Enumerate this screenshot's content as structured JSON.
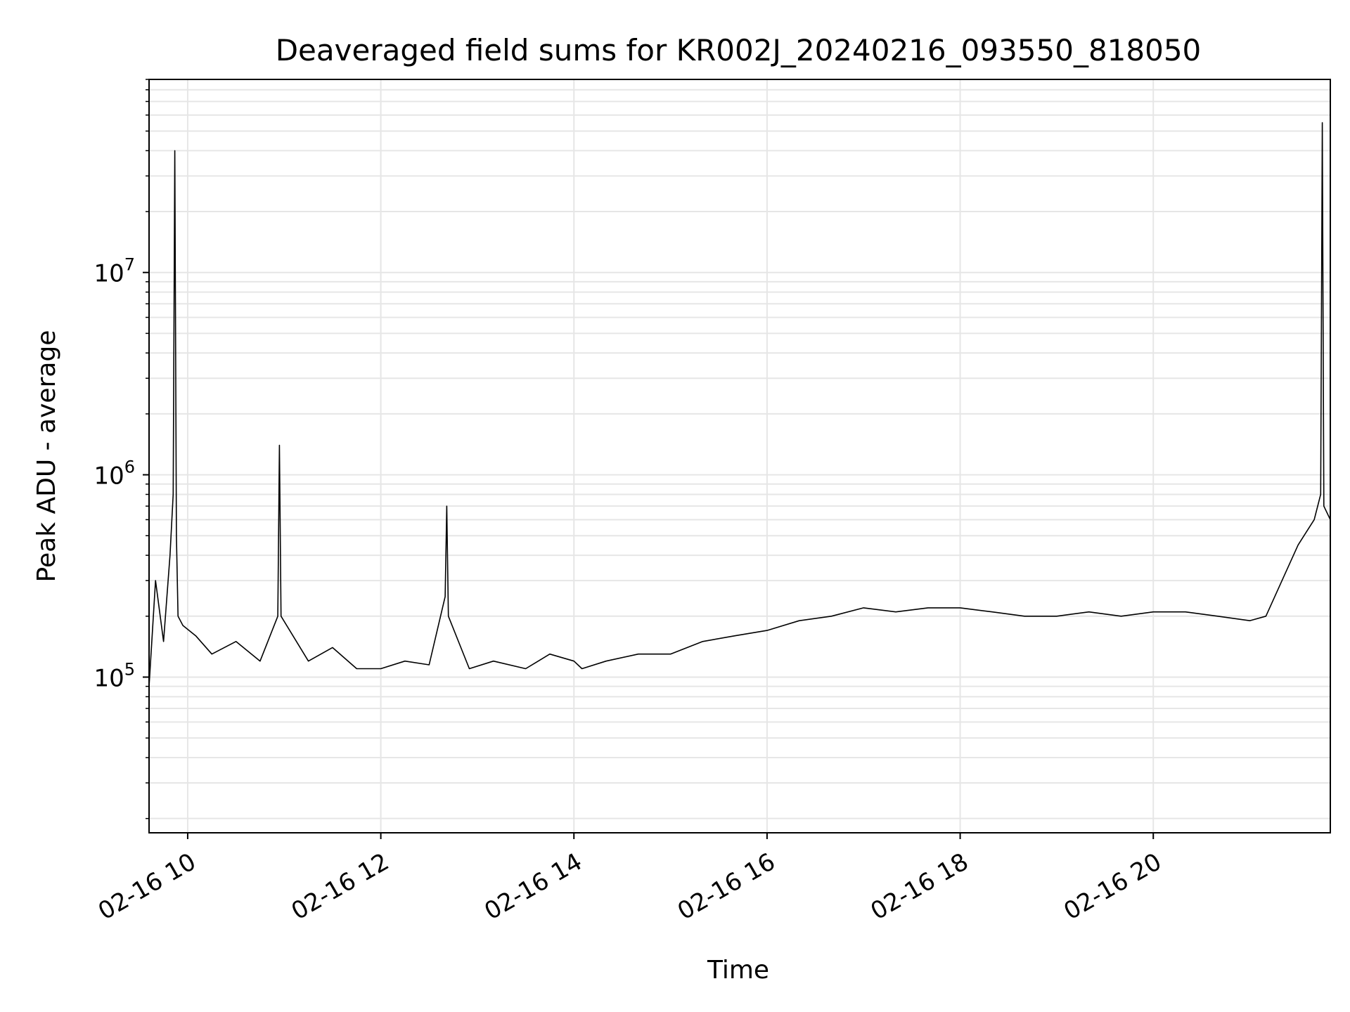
{
  "chart_data": {
    "type": "line",
    "title": "Deaveraged field sums for KR002J_20240216_093550_818050",
    "xlabel": "Time",
    "ylabel": "Peak ADU - average",
    "x_range": [
      "2024-02-16T09:36",
      "2024-02-16T21:50"
    ],
    "y_scale": "log",
    "ylim": [
      17000,
      90000000
    ],
    "grid": "on",
    "x_ticks": [
      {
        "x": "2024-02-16T10:00",
        "label": "02-16 10"
      },
      {
        "x": "2024-02-16T12:00",
        "label": "02-16 12"
      },
      {
        "x": "2024-02-16T14:00",
        "label": "02-16 14"
      },
      {
        "x": "2024-02-16T16:00",
        "label": "02-16 16"
      },
      {
        "x": "2024-02-16T18:00",
        "label": "02-16 18"
      },
      {
        "x": "2024-02-16T20:00",
        "label": "02-16 20"
      }
    ],
    "y_ticks": [
      {
        "value": 100000,
        "base": "10",
        "exp": "5"
      },
      {
        "value": 1000000,
        "base": "10",
        "exp": "6"
      },
      {
        "value": 10000000,
        "base": "10",
        "exp": "7"
      }
    ],
    "line_color": "#000000",
    "grid_color": "#e6e6e6",
    "series": [
      {
        "x": [
          "2024-02-16T09:36",
          "2024-02-16T09:40",
          "2024-02-16T09:45",
          "2024-02-16T09:49",
          "2024-02-16T09:51",
          "2024-02-16T09:52",
          "2024-02-16T09:53",
          "2024-02-16T09:54",
          "2024-02-16T09:57",
          "2024-02-16T10:05",
          "2024-02-16T10:15",
          "2024-02-16T10:30",
          "2024-02-16T10:45",
          "2024-02-16T10:56",
          "2024-02-16T10:57",
          "2024-02-16T10:58",
          "2024-02-16T11:15",
          "2024-02-16T11:30",
          "2024-02-16T11:45",
          "2024-02-16T12:00",
          "2024-02-16T12:15",
          "2024-02-16T12:30",
          "2024-02-16T12:40",
          "2024-02-16T12:41",
          "2024-02-16T12:42",
          "2024-02-16T12:55",
          "2024-02-16T13:10",
          "2024-02-16T13:30",
          "2024-02-16T13:45",
          "2024-02-16T14:00",
          "2024-02-16T14:05",
          "2024-02-16T14:20",
          "2024-02-16T14:40",
          "2024-02-16T15:00",
          "2024-02-16T15:20",
          "2024-02-16T15:40",
          "2024-02-16T16:00",
          "2024-02-16T16:20",
          "2024-02-16T16:40",
          "2024-02-16T17:00",
          "2024-02-16T17:20",
          "2024-02-16T17:40",
          "2024-02-16T18:00",
          "2024-02-16T18:20",
          "2024-02-16T18:40",
          "2024-02-16T19:00",
          "2024-02-16T19:20",
          "2024-02-16T19:40",
          "2024-02-16T20:00",
          "2024-02-16T20:20",
          "2024-02-16T20:40",
          "2024-02-16T21:00",
          "2024-02-16T21:10",
          "2024-02-16T21:20",
          "2024-02-16T21:30",
          "2024-02-16T21:40",
          "2024-02-16T21:44",
          "2024-02-16T21:45",
          "2024-02-16T21:46",
          "2024-02-16T21:50"
        ],
        "y": [
          90000,
          300000,
          150000,
          400000,
          800000,
          40000000,
          500000,
          200000,
          180000,
          160000,
          130000,
          150000,
          120000,
          200000,
          1400000,
          200000,
          120000,
          140000,
          110000,
          110000,
          120000,
          115000,
          250000,
          700000,
          200000,
          110000,
          120000,
          110000,
          130000,
          120000,
          110000,
          120000,
          130000,
          130000,
          150000,
          160000,
          170000,
          190000,
          200000,
          220000,
          210000,
          220000,
          220000,
          210000,
          200000,
          200000,
          210000,
          200000,
          210000,
          210000,
          200000,
          190000,
          200000,
          300000,
          450000,
          600000,
          800000,
          55000000,
          700000,
          600000
        ]
      }
    ]
  }
}
